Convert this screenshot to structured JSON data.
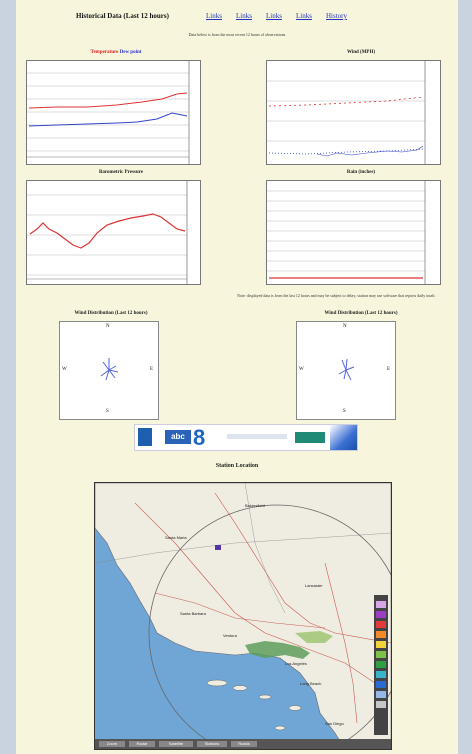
{
  "header": {
    "title": "Historical Data (Last 12 hours)",
    "links": [
      "Links",
      "Links",
      "Links",
      "Links",
      "History"
    ]
  },
  "subtitle": "Data below is from the most recent 12 hours of observations",
  "charts": {
    "temp_dew_title_a": "Temperature",
    "temp_dew_title_b": "Dew point",
    "wind_title": "Wind (MPH)",
    "pressure_title": "Barometric Pressure",
    "rain_title": "Rain (inches)"
  },
  "note": "Note: displayed data is from the last 12 hours and may be subject to delay; station may use software that reports daily totals",
  "roses": {
    "left_title": "Wind Distribution (Last 12 hours)",
    "right_title": "Wind Distribution (Last 12 hours)",
    "dirs": {
      "n": "N",
      "s": "S",
      "e": "E",
      "w": "W"
    }
  },
  "banner": {
    "badge": "abc",
    "number": "8"
  },
  "station_location_title": "Station Location",
  "map": {
    "labels": [
      "Santa Maria",
      "Bakersfield",
      "Lancaster",
      "Santa Barbara",
      "Ventura",
      "Los Angeles",
      "Long Beach",
      "San Diego"
    ],
    "bar_items": [
      "Zoom",
      "Radar",
      "Satellite",
      "Stations",
      "Roads"
    ]
  },
  "colors": {
    "temperature": "#dd3333",
    "dew_point": "#3344cc",
    "page_bg": "#f7f6dc",
    "wind_rose": "#5566dd"
  }
}
